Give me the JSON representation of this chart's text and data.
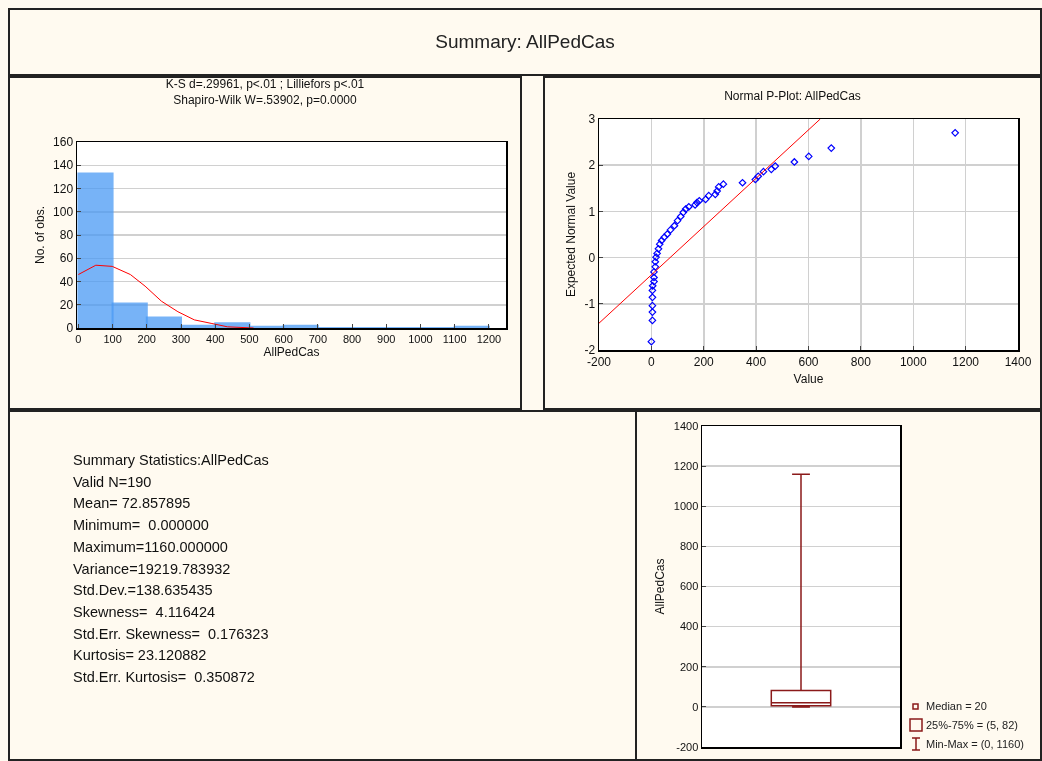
{
  "chart_data": [
    {
      "type": "other",
      "title": "Summary: AllPedCas"
    },
    {
      "type": "histogram",
      "title": "K-S d=.29961, p<.01 ; Lilliefors p<.01",
      "subtitle": "Shapiro-Wilk W=.53902, p=0.0000",
      "xlabel": "AllPedCas",
      "ylabel": "No. of obs.",
      "bins": [
        0,
        100,
        200,
        300,
        400,
        500,
        600,
        700,
        800,
        900,
        1000,
        1100,
        1200
      ],
      "values": [
        133,
        21,
        9,
        2,
        4,
        1,
        2,
        0,
        0,
        0,
        0,
        1
      ],
      "color": "#4a9af5",
      "xlim": [
        -4,
        1250
      ],
      "xticks": [
        0,
        100,
        200,
        300,
        400,
        500,
        600,
        700,
        800,
        900,
        1000,
        1100,
        1200
      ],
      "ylim": [
        0,
        160
      ],
      "yticks": [
        0,
        20,
        40,
        60,
        80,
        100,
        120,
        140,
        160
      ],
      "grid": "y",
      "series": [
        {
          "type": "line",
          "color": "#ff0000",
          "x": [
            0,
            51,
            99,
            152,
            195,
            243,
            291,
            339,
            388,
            436,
            512
          ],
          "values": [
            46,
            54,
            53,
            46,
            36,
            23,
            14,
            7,
            4,
            1,
            0
          ]
        }
      ]
    },
    {
      "type": "scatter",
      "title": "Normal P-Plot: AllPedCas",
      "xlabel": "Value",
      "ylabel": "Expected Normal Value",
      "xlim": [
        -200,
        1400
      ],
      "xticks": [
        -200,
        0,
        200,
        400,
        600,
        800,
        1000,
        1200,
        1400
      ],
      "ylim": [
        -2,
        3
      ],
      "yticks": [
        -2,
        -1,
        0,
        1,
        2,
        3
      ],
      "grid": true,
      "marker": "diamond",
      "series": [
        {
          "color": "#0000ff",
          "x": [
            0,
            4,
            4,
            4,
            4,
            4,
            5,
            10,
            10,
            10,
            15,
            15,
            18,
            22,
            27,
            32,
            39,
            49,
            61,
            73,
            88,
            100,
            112,
            122,
            131,
            143,
            167,
            174,
            183,
            207,
            219,
            244,
            251,
            257,
            275,
            348,
            397,
            408,
            428,
            458,
            473,
            546,
            601,
            687,
            1160
          ],
          "values": [
            -1.82,
            -1.36,
            -1.18,
            -1.04,
            -0.86,
            -0.71,
            -0.61,
            -0.52,
            -0.43,
            -0.31,
            -0.2,
            -0.09,
            0.01,
            0.09,
            0.19,
            0.29,
            0.37,
            0.44,
            0.51,
            0.6,
            0.69,
            0.8,
            0.89,
            0.98,
            1.05,
            1.1,
            1.14,
            1.19,
            1.23,
            1.26,
            1.34,
            1.37,
            1.44,
            1.53,
            1.59,
            1.62,
            1.69,
            1.76,
            1.86,
            1.91,
            1.98,
            2.07,
            2.19,
            2.37,
            2.7
          ]
        },
        {
          "type": "line",
          "color": "#ff0000",
          "marker": "none",
          "x": [
            -200,
            645
          ],
          "values": [
            -1.42,
            3
          ]
        }
      ]
    },
    {
      "type": "other",
      "title": "Summary Statistics:AllPedCas",
      "annotations": [
        "Valid N=190",
        "Mean= 72.857895",
        "Minimum=  0.000000",
        "Maximum=1160.000000",
        "Variance=19219.783932",
        "Std.Dev.=138.635435",
        "Skewness=  4.116424",
        "Std.Err. Skewness=  0.176323",
        "Kurtosis= 23.120882",
        "Std.Err. Kurtosis=  0.350872"
      ]
    },
    {
      "type": "box",
      "ylabel": "AllPedCas",
      "categories": [
        null
      ],
      "color": "#8b1a1a",
      "boxes": [
        {
          "low": 0,
          "q1": 5,
          "median": 20,
          "q3": 82,
          "high": 1160
        }
      ],
      "ylim": [
        -200,
        1400
      ],
      "yticks": [
        -200,
        0,
        200,
        400,
        600,
        800,
        1000,
        1200,
        1400
      ],
      "grid": "y",
      "tick_labels": "y",
      "annotations": [
        "Median = 20",
        "25%-75% = (5, 82)",
        "Min-Max = (0, 1160)"
      ]
    }
  ]
}
